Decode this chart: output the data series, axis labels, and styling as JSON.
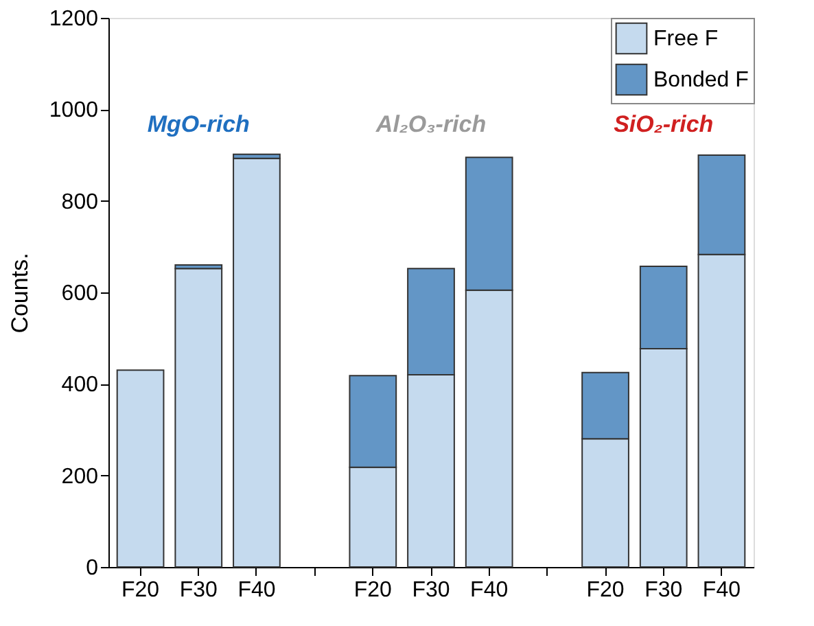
{
  "chart_data": {
    "type": "bar",
    "stacked": true,
    "ylabel": "Counts.",
    "categories": [
      "F20",
      "F30",
      "F40",
      null,
      "F20",
      "F30",
      "F40",
      null,
      "F20",
      "F30",
      "F40"
    ],
    "series": [
      {
        "name": "Free F",
        "color": "#c5daee",
        "values": [
          430,
          652,
          893,
          null,
          218,
          420,
          605,
          null,
          280,
          477,
          683
        ]
      },
      {
        "name": "Bonded F",
        "color": "#6396c6",
        "values": [
          null,
          8,
          9,
          null,
          200,
          232,
          290,
          null,
          145,
          180,
          217
        ]
      }
    ],
    "ylim": [
      0,
      1200
    ],
    "yticks": [
      0,
      200,
      400,
      600,
      800,
      1000,
      1200
    ],
    "annotations": [
      "MgO-rich",
      "Al₂O₃-rich",
      "SiO₂-rich"
    ],
    "legend": "top right",
    "grid": false
  }
}
